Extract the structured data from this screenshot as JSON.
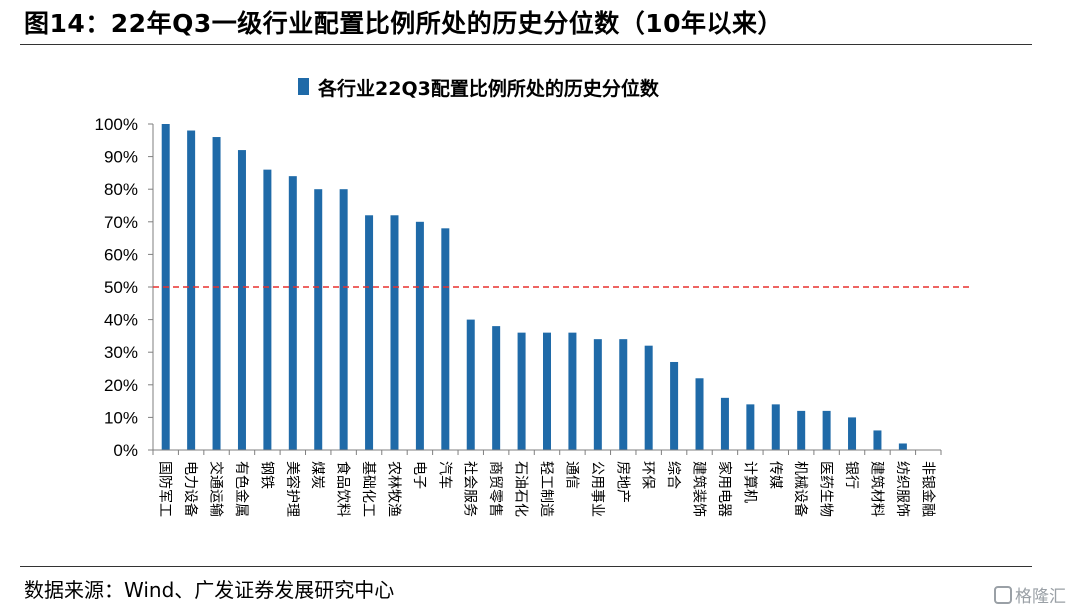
{
  "figure": {
    "title": "图14：22年Q3一级行业配置比例所处的历史分位数（10年以来）",
    "source": "数据来源：Wind、广发证券发展研究中心",
    "watermark": "格隆汇"
  },
  "chart_data": {
    "type": "bar",
    "title": "",
    "xlabel": "",
    "ylabel": "",
    "legend": {
      "position": "top-center",
      "entries": [
        "各行业22Q3配置比例所处的历史分位数"
      ]
    },
    "ylim": [
      0,
      1
    ],
    "yticks": [
      "0%",
      "10%",
      "20%",
      "30%",
      "40%",
      "50%",
      "60%",
      "70%",
      "80%",
      "90%",
      "100%"
    ],
    "grid": false,
    "reference_line": {
      "value": 0.5,
      "style": "dashed",
      "color": "#e8312f"
    },
    "colors": {
      "bar": "#1f6aa8",
      "axis": "#7f7f7f"
    },
    "categories": [
      "国防军工",
      "电力设备",
      "交通运输",
      "有色金属",
      "钢铁",
      "美容护理",
      "煤炭",
      "食品饮料",
      "基础化工",
      "农林牧渔",
      "电子",
      "汽车",
      "社会服务",
      "商贸零售",
      "石油石化",
      "轻工制造",
      "通信",
      "公用事业",
      "房地产",
      "环保",
      "综合",
      "建筑装饰",
      "家用电器",
      "计算机",
      "传媒",
      "机械设备",
      "医药生物",
      "银行",
      "建筑材料",
      "纺织服饰",
      "非银金融"
    ],
    "series": [
      {
        "name": "各行业22Q3配置比例所处的历史分位数",
        "values": [
          1.0,
          0.98,
          0.96,
          0.92,
          0.86,
          0.84,
          0.8,
          0.8,
          0.72,
          0.72,
          0.7,
          0.68,
          0.4,
          0.38,
          0.36,
          0.36,
          0.36,
          0.34,
          0.34,
          0.32,
          0.27,
          0.22,
          0.16,
          0.14,
          0.14,
          0.12,
          0.12,
          0.1,
          0.06,
          0.02,
          0.0
        ]
      }
    ]
  }
}
